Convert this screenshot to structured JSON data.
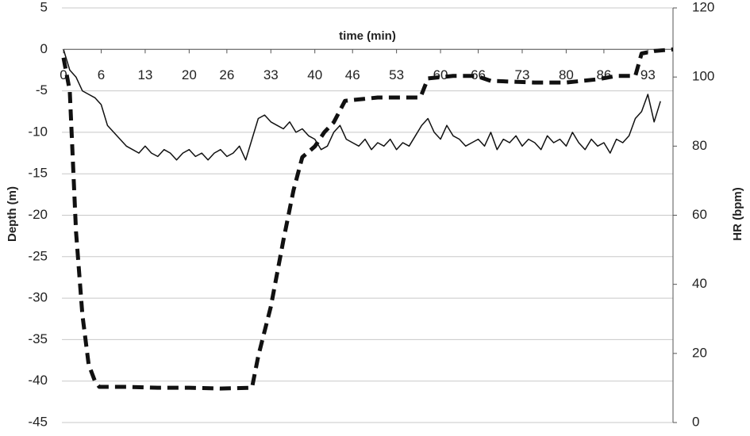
{
  "chart_data": {
    "type": "line",
    "x_label": "time (min)",
    "y_label": "Depth (m)",
    "y2_label": "HR (bpm)",
    "xlim": [
      0,
      97
    ],
    "xticks": [
      0,
      6,
      13,
      20,
      26,
      33,
      40,
      46,
      53,
      60,
      66,
      73,
      80,
      86,
      93
    ],
    "ylim": [
      -45,
      5
    ],
    "yticks": [
      5,
      0,
      -5,
      -10,
      -15,
      -20,
      -25,
      -30,
      -35,
      -40,
      -45
    ],
    "y2lim": [
      0,
      120
    ],
    "y2ticks": [
      0,
      20,
      40,
      60,
      80,
      100,
      120
    ],
    "grid": true,
    "series": [
      {
        "name": "Depth",
        "color": "#111111",
        "dashed": true,
        "x": [
          0,
          1,
          2,
          3,
          4,
          5,
          5.7,
          10,
          15,
          20,
          25,
          30,
          31,
          33,
          35,
          36.6,
          38,
          40,
          41.5,
          43,
          44.8,
          50,
          56.8,
          58,
          62,
          65.7,
          68,
          75,
          80,
          85,
          88,
          91,
          92,
          94,
          97
        ],
        "values": [
          -1,
          -5,
          -22,
          -32,
          -38,
          -40,
          -40.7,
          -40.7,
          -40.8,
          -40.8,
          -40.9,
          -40.8,
          -37,
          -31,
          -23,
          -17,
          -13,
          -11.7,
          -10,
          -8.8,
          -6.2,
          -5.8,
          -5.8,
          -3.5,
          -3.2,
          -3.2,
          -3.8,
          -4,
          -4,
          -3.6,
          -3.2,
          -3.2,
          -0.5,
          -0.2,
          0
        ]
      },
      {
        "name": "HR",
        "color": "#111111",
        "dashed": false,
        "axis": "y2",
        "x": [
          0,
          1,
          2,
          3,
          4,
          5,
          6,
          7,
          8,
          9,
          10,
          11,
          12,
          13,
          14,
          15,
          16,
          17,
          18,
          19,
          20,
          21,
          22,
          23,
          24,
          25,
          26,
          27,
          28,
          29,
          30,
          31,
          32,
          33,
          34,
          35,
          36,
          37,
          38,
          39,
          40,
          41,
          42,
          43,
          44,
          45,
          46,
          47,
          48,
          49,
          50,
          51,
          52,
          53,
          54,
          55,
          56,
          57,
          58,
          59,
          60,
          61,
          62,
          63,
          64,
          65,
          66,
          67,
          68,
          69,
          70,
          71,
          72,
          73,
          74,
          75,
          76,
          77,
          78,
          79,
          80,
          81,
          82,
          83,
          84,
          85,
          86,
          87,
          88,
          89,
          90,
          91,
          92,
          93,
          94,
          95
        ],
        "values": [
          108,
          102,
          100,
          96,
          95,
          94,
          92,
          86,
          84,
          82,
          80,
          79,
          78,
          80,
          78,
          77,
          79,
          78,
          76,
          78,
          79,
          77,
          78,
          76,
          78,
          79,
          77,
          78,
          80,
          76,
          82,
          88,
          89,
          87,
          86,
          85,
          87,
          84,
          85,
          83,
          82,
          79,
          80,
          84,
          86,
          82,
          81,
          80,
          82,
          79,
          81,
          80,
          82,
          79,
          81,
          80,
          83,
          86,
          88,
          84,
          82,
          86,
          83,
          82,
          80,
          81,
          82,
          80,
          84,
          79,
          82,
          81,
          83,
          80,
          82,
          81,
          79,
          83,
          81,
          82,
          80,
          84,
          81,
          79,
          82,
          80,
          81,
          78,
          82,
          81,
          83,
          88,
          90,
          95,
          87,
          93
        ]
      }
    ]
  }
}
